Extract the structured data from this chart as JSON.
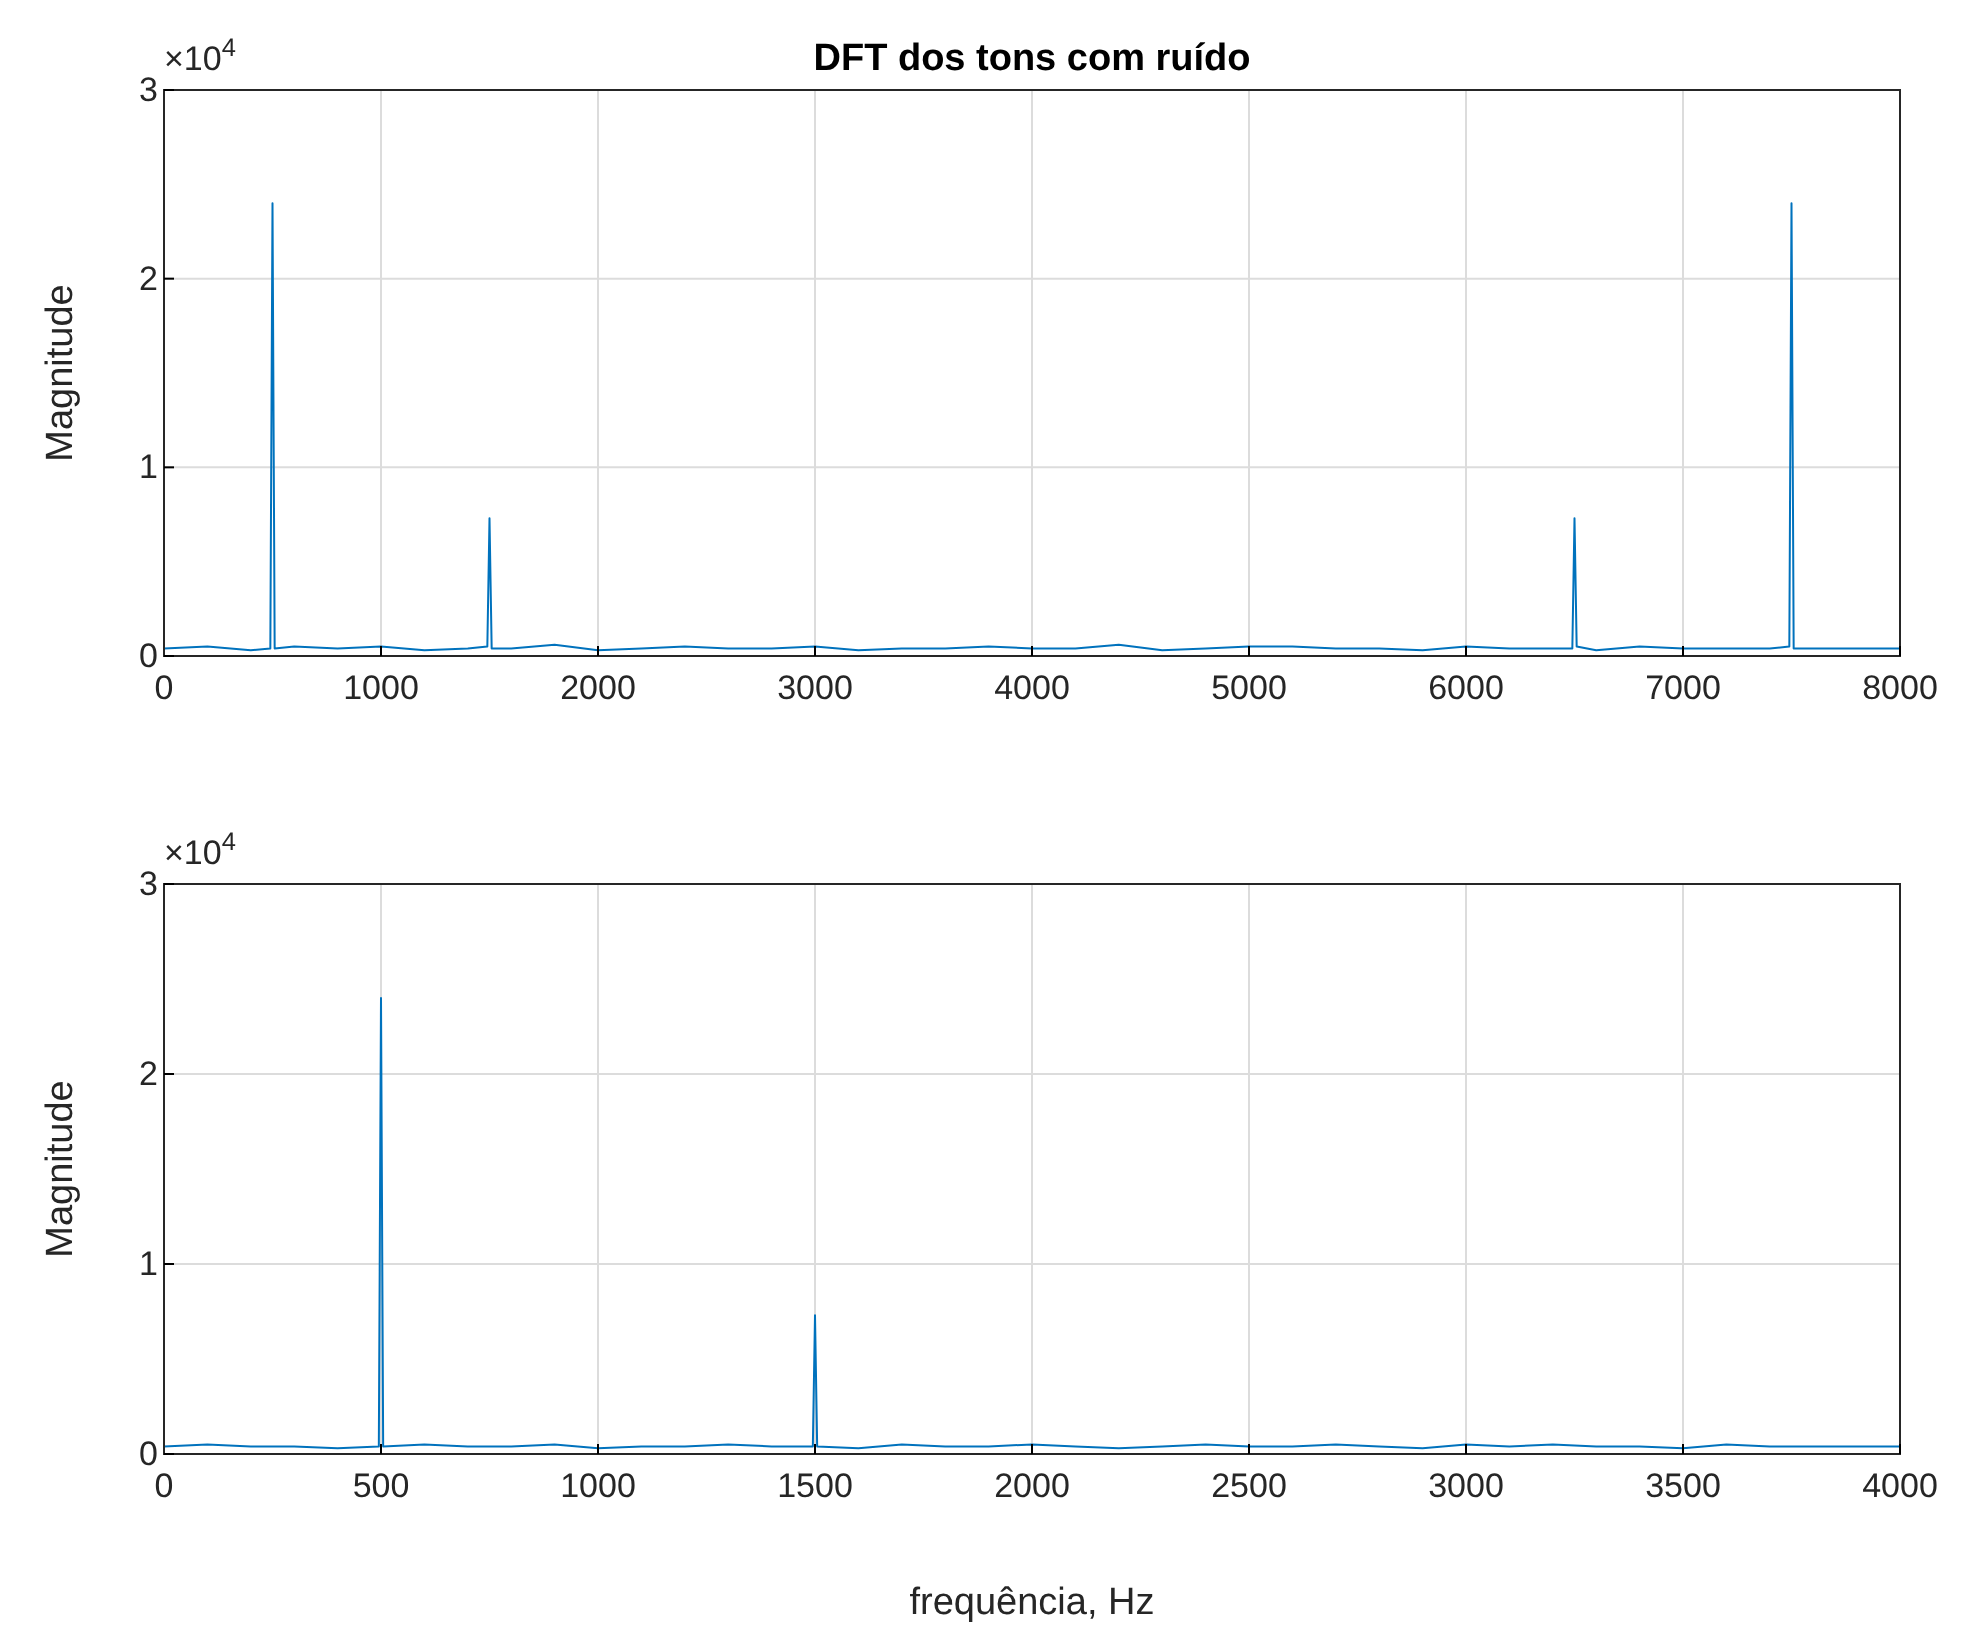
{
  "chart_data": [
    {
      "type": "line",
      "title": "DFT dos tons com ruído",
      "ylabel": "Magnitude",
      "annotations": [
        "×10$^{4}$"
      ],
      "xlim": [
        0,
        8000
      ],
      "xticks": [
        0,
        1000,
        2000,
        3000,
        4000,
        5000,
        6000,
        7000,
        8000
      ],
      "ylim": [
        0,
        3
      ],
      "yticks": [
        0,
        1,
        2,
        3
      ],
      "grid": true,
      "series": [
        {
          "color": "#0072bd",
          "x": [
            0,
            200,
            400,
            490,
            500,
            510,
            600,
            800,
            1000,
            1200,
            1400,
            1490,
            1500,
            1510,
            1600,
            1800,
            2000,
            2200,
            2400,
            2600,
            2800,
            3000,
            3200,
            3400,
            3600,
            3800,
            4000,
            4200,
            4400,
            4600,
            4800,
            5000,
            5200,
            5400,
            5600,
            5800,
            6000,
            6200,
            6400,
            6490,
            6500,
            6510,
            6600,
            6800,
            7000,
            7200,
            7400,
            7490,
            7500,
            7510,
            7600,
            7800,
            8000
          ],
          "values": [
            0.04,
            0.05,
            0.03,
            0.04,
            2.4,
            0.04,
            0.05,
            0.04,
            0.05,
            0.03,
            0.04,
            0.05,
            0.73,
            0.04,
            0.04,
            0.06,
            0.03,
            0.04,
            0.05,
            0.04,
            0.04,
            0.05,
            0.03,
            0.04,
            0.04,
            0.05,
            0.04,
            0.04,
            0.06,
            0.03,
            0.04,
            0.05,
            0.05,
            0.04,
            0.04,
            0.03,
            0.05,
            0.04,
            0.04,
            0.04,
            0.73,
            0.05,
            0.03,
            0.05,
            0.04,
            0.04,
            0.04,
            0.05,
            2.4,
            0.04,
            0.04,
            0.04,
            0.04
          ]
        }
      ]
    },
    {
      "type": "line",
      "xlabel": "frequência, Hz",
      "ylabel": "Magnitude",
      "annotations": [
        "×10$^{4}$"
      ],
      "xlim": [
        0,
        4000
      ],
      "xticks": [
        0,
        500,
        1000,
        1500,
        2000,
        2500,
        3000,
        3500,
        4000
      ],
      "ylim": [
        0,
        3
      ],
      "yticks": [
        0,
        1,
        2,
        3
      ],
      "grid": true,
      "series": [
        {
          "color": "#0072bd",
          "x": [
            0,
            100,
            200,
            300,
            400,
            495,
            500,
            505,
            600,
            700,
            800,
            900,
            1000,
            1100,
            1200,
            1300,
            1400,
            1495,
            1500,
            1505,
            1600,
            1700,
            1800,
            1900,
            2000,
            2100,
            2200,
            2300,
            2400,
            2500,
            2600,
            2700,
            2800,
            2900,
            3000,
            3100,
            3200,
            3300,
            3400,
            3500,
            3600,
            3700,
            3800,
            3900,
            4000
          ],
          "values": [
            0.04,
            0.05,
            0.04,
            0.04,
            0.03,
            0.04,
            2.4,
            0.04,
            0.05,
            0.04,
            0.04,
            0.05,
            0.03,
            0.04,
            0.04,
            0.05,
            0.04,
            0.04,
            0.73,
            0.04,
            0.03,
            0.05,
            0.04,
            0.04,
            0.05,
            0.04,
            0.03,
            0.04,
            0.05,
            0.04,
            0.04,
            0.05,
            0.04,
            0.03,
            0.05,
            0.04,
            0.05,
            0.04,
            0.04,
            0.03,
            0.05,
            0.04,
            0.04,
            0.04,
            0.04
          ]
        }
      ]
    }
  ]
}
